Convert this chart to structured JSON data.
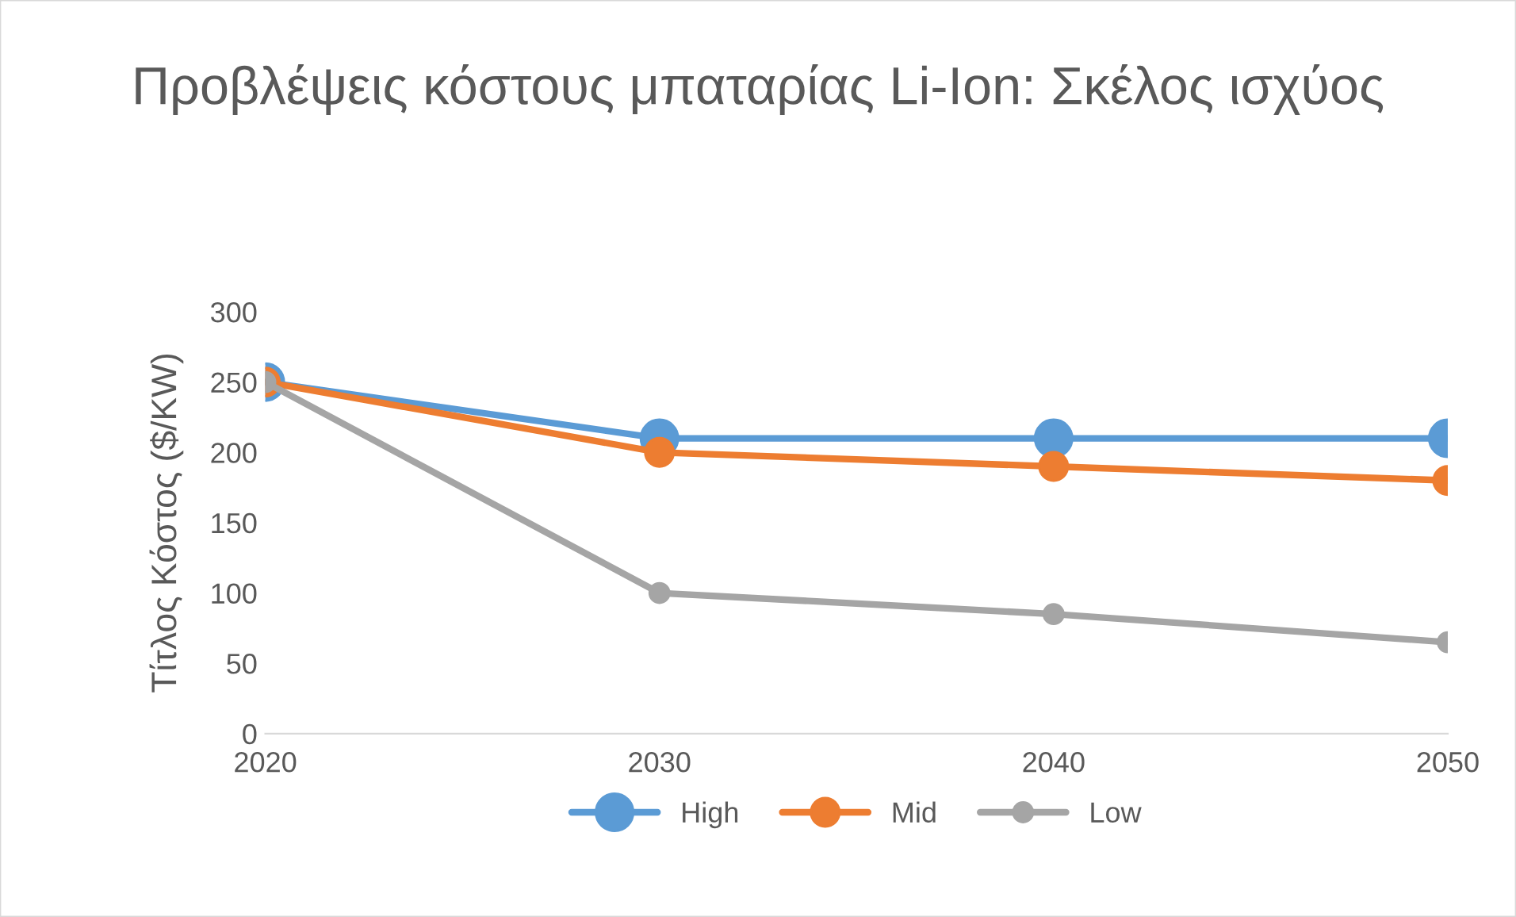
{
  "chart_data": {
    "type": "line",
    "title": "Προβλέψεις κόστους μπαταρίας Li-Ion: Σκέλος ισχύος",
    "ylabel": "Τίτλος Κόστος ($/KW)",
    "categories": [
      "2020",
      "2030",
      "2040",
      "2050"
    ],
    "series": [
      {
        "name": "High",
        "color": "#5b9bd5",
        "values": [
          250,
          210,
          210,
          210
        ]
      },
      {
        "name": "Mid",
        "color": "#ed7d31",
        "values": [
          250,
          200,
          190,
          180
        ]
      },
      {
        "name": "Low",
        "color": "#a5a5a5",
        "values": [
          250,
          100,
          85,
          65
        ]
      }
    ],
    "ylim": [
      0,
      300
    ],
    "yticks": [
      0,
      50,
      100,
      150,
      200,
      250,
      300
    ],
    "grid": false,
    "legend": "bottom",
    "marker": "circle",
    "line_style": "solid"
  }
}
